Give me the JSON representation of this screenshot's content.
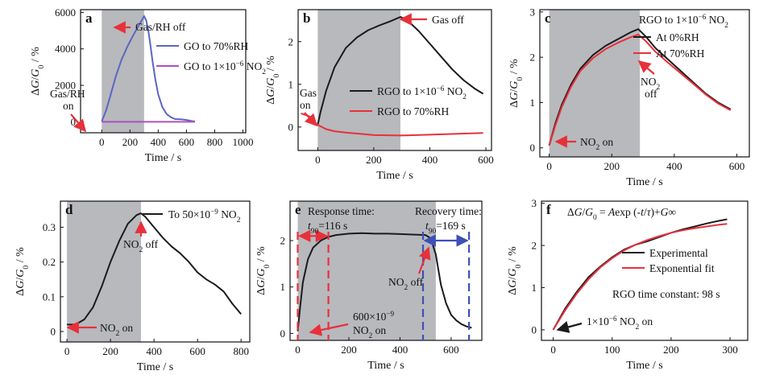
{
  "colors": {
    "shade": "#b7b9bd",
    "black": "#1b1b1b",
    "red": "#e8303a",
    "blue": "#5b66c0",
    "purple": "#b14fc0",
    "dashblue": "#3d50b8"
  },
  "chart_data": [
    {
      "id": "a",
      "letter": "a",
      "type": "line",
      "xlabel": "Time / s",
      "ylabel": "ΔG/G0 / %",
      "xlim": [
        -150,
        1020
      ],
      "ylim": [
        -600,
        6150
      ],
      "xticks": [
        0,
        200,
        400,
        600,
        800,
        1000
      ],
      "yticks": [
        0,
        2000,
        4000,
        6000
      ],
      "shade": [
        0,
        300
      ],
      "series": [
        {
          "name": "GO to 70%RH",
          "color": "blue",
          "x": [
            0,
            30,
            60,
            100,
            140,
            180,
            220,
            260,
            290,
            300,
            315,
            330,
            345,
            360,
            380,
            400,
            430,
            460,
            490,
            520,
            560,
            600,
            640,
            660
          ],
          "y": [
            30,
            600,
            1400,
            2500,
            3400,
            4100,
            4700,
            5250,
            5650,
            5800,
            5550,
            5000,
            4200,
            3300,
            2300,
            1500,
            800,
            420,
            250,
            150,
            140,
            100,
            40,
            20
          ]
        },
        {
          "name": "GO to 1×10⁻⁶ NO₂",
          "color": "purple",
          "x": [
            0,
            200,
            400,
            660
          ],
          "y": [
            0,
            0,
            0,
            0
          ]
        }
      ],
      "annotations": [
        "Gas/RH off",
        "Gas/RH",
        "on"
      ]
    },
    {
      "id": "b",
      "letter": "b",
      "type": "line",
      "xlabel": "Time / s",
      "ylabel": "ΔG/G0 / %",
      "xlim": [
        -70,
        620
      ],
      "ylim": [
        -0.55,
        2.75
      ],
      "xticks": [
        0,
        200,
        400,
        600
      ],
      "yticks": [
        0,
        1,
        2
      ],
      "shade": [
        0,
        295
      ],
      "series": [
        {
          "name": "RGO to 1×10⁻⁶ NO₂",
          "color": "black",
          "x": [
            0,
            10,
            30,
            60,
            100,
            140,
            180,
            220,
            260,
            295,
            320,
            360,
            400,
            440,
            480,
            520,
            560,
            590
          ],
          "y": [
            0.05,
            0.35,
            0.85,
            1.4,
            1.85,
            2.1,
            2.27,
            2.38,
            2.48,
            2.58,
            2.5,
            2.25,
            1.95,
            1.65,
            1.35,
            1.1,
            0.9,
            0.78
          ]
        },
        {
          "name": "RGO to 70%RH",
          "color": "red",
          "x": [
            -60,
            -30,
            0,
            30,
            60,
            100,
            150,
            200,
            295,
            400,
            500,
            590
          ],
          "y": [
            0.32,
            0.25,
            0.05,
            -0.05,
            -0.1,
            -0.13,
            -0.16,
            -0.19,
            -0.2,
            -0.18,
            -0.16,
            -0.14
          ]
        }
      ],
      "annotations": [
        "Gas off",
        "Gas",
        "on"
      ]
    },
    {
      "id": "c",
      "letter": "c",
      "type": "line",
      "xlabel": "Time / s",
      "ylabel": "ΔG/G0 / %",
      "xlim": [
        -30,
        640
      ],
      "ylim": [
        -0.2,
        3.05
      ],
      "xticks": [
        0,
        200,
        400,
        600
      ],
      "yticks": [
        0,
        1,
        2,
        3
      ],
      "shade": [
        0,
        290
      ],
      "series": [
        {
          "name": "At 0%RH",
          "color": "black",
          "x": [
            0,
            20,
            40,
            70,
            100,
            140,
            180,
            220,
            260,
            285,
            310,
            340,
            380,
            420,
            460,
            500,
            540,
            580
          ],
          "y": [
            0.05,
            0.55,
            0.95,
            1.4,
            1.75,
            2.05,
            2.25,
            2.4,
            2.55,
            2.62,
            2.45,
            2.2,
            1.95,
            1.7,
            1.45,
            1.2,
            1.0,
            0.85
          ]
        },
        {
          "name": "At 70%RH",
          "color": "red",
          "x": [
            0,
            20,
            40,
            70,
            100,
            140,
            180,
            220,
            260,
            285,
            310,
            340,
            380,
            420,
            460,
            500,
            540,
            580
          ],
          "y": [
            0.05,
            0.5,
            0.9,
            1.35,
            1.7,
            1.98,
            2.18,
            2.32,
            2.44,
            2.5,
            2.35,
            2.12,
            1.88,
            1.65,
            1.42,
            1.18,
            0.98,
            0.83
          ]
        }
      ],
      "legend_title": "RGO to 1×10⁻⁶ NO₂",
      "annotations": [
        "NO₂ on",
        "NO₂",
        "off"
      ]
    },
    {
      "id": "d",
      "letter": "d",
      "type": "line",
      "xlabel": "Time / s",
      "ylabel": "ΔG/G0 / %",
      "xlim": [
        -30,
        840
      ],
      "ylim": [
        -0.03,
        0.375
      ],
      "xticks": [
        0,
        200,
        400,
        600,
        800
      ],
      "yticks": [
        0,
        0.1,
        0.2,
        0.3
      ],
      "shade": [
        0,
        340
      ],
      "series": [
        {
          "name": "To 50×10⁻⁹ NO₂",
          "color": "black",
          "x": [
            0,
            40,
            80,
            120,
            160,
            200,
            240,
            280,
            320,
            340,
            360,
            400,
            440,
            480,
            520,
            560,
            600,
            640,
            680,
            720,
            760,
            800
          ],
          "y": [
            0.02,
            0.02,
            0.035,
            0.07,
            0.13,
            0.2,
            0.26,
            0.31,
            0.335,
            0.34,
            0.33,
            0.3,
            0.27,
            0.245,
            0.225,
            0.2,
            0.17,
            0.15,
            0.135,
            0.115,
            0.08,
            0.05
          ]
        }
      ],
      "annotations": [
        "NO₂ on",
        "NO₂ off"
      ]
    },
    {
      "id": "e",
      "letter": "e",
      "type": "line",
      "xlabel": "Time / s",
      "ylabel": "ΔG/G0 / %",
      "xlim": [
        -30,
        720
      ],
      "ylim": [
        -0.15,
        2.85
      ],
      "xticks": [
        0,
        200,
        400,
        600
      ],
      "yticks": [
        0,
        1,
        2
      ],
      "shade": [
        0,
        540
      ],
      "series": [
        {
          "name": "response",
          "color": "black",
          "x": [
            0,
            10,
            20,
            40,
            60,
            90,
            120,
            150,
            200,
            250,
            300,
            350,
            400,
            450,
            500,
            520,
            540,
            560,
            580,
            600,
            620,
            640,
            660,
            680
          ],
          "y": [
            0.05,
            0.6,
            1.1,
            1.6,
            1.85,
            2.0,
            2.08,
            2.12,
            2.15,
            2.16,
            2.15,
            2.15,
            2.14,
            2.13,
            2.12,
            2.05,
            1.7,
            1.05,
            0.65,
            0.4,
            0.28,
            0.2,
            0.15,
            0.12
          ]
        }
      ],
      "vlines_red": [
        0,
        120
      ],
      "vlines_blue": [
        490,
        670
      ],
      "annotations": [
        "Response time:",
        "t90=116 s",
        "Recovery time:",
        "t90=169 s",
        "NO₂ off",
        "600×10⁻⁹",
        "NO₂ on"
      ]
    },
    {
      "id": "f",
      "letter": "f",
      "type": "line",
      "xlabel": "Time / s",
      "ylabel": "ΔG/G0 / %",
      "xlim": [
        -20,
        330
      ],
      "ylim": [
        -0.25,
        3.05
      ],
      "xticks": [
        0,
        100,
        200,
        300
      ],
      "yticks": [
        0,
        1,
        2,
        3
      ],
      "series": [
        {
          "name": "Experimental",
          "color": "black",
          "x": [
            0,
            20,
            40,
            60,
            80,
            100,
            120,
            140,
            160,
            180,
            200,
            220,
            240,
            260,
            280,
            295
          ],
          "y": [
            0.0,
            0.5,
            0.9,
            1.25,
            1.5,
            1.72,
            1.9,
            2.02,
            2.1,
            2.2,
            2.3,
            2.38,
            2.45,
            2.52,
            2.58,
            2.62
          ]
        },
        {
          "name": "Exponential fit",
          "color": "red",
          "x": [
            0,
            20,
            40,
            60,
            80,
            100,
            120,
            140,
            160,
            180,
            200,
            220,
            240,
            260,
            280,
            295
          ],
          "y": [
            0.0,
            0.46,
            0.86,
            1.2,
            1.48,
            1.7,
            1.88,
            2.02,
            2.13,
            2.22,
            2.3,
            2.36,
            2.41,
            2.45,
            2.49,
            2.51
          ]
        }
      ],
      "formula": "ΔG/G0 = Aexp (-t/τ)+G∞",
      "annotations": [
        "RGO time constant: 98 s",
        "1×10⁻⁶ NO₂ on"
      ]
    }
  ]
}
